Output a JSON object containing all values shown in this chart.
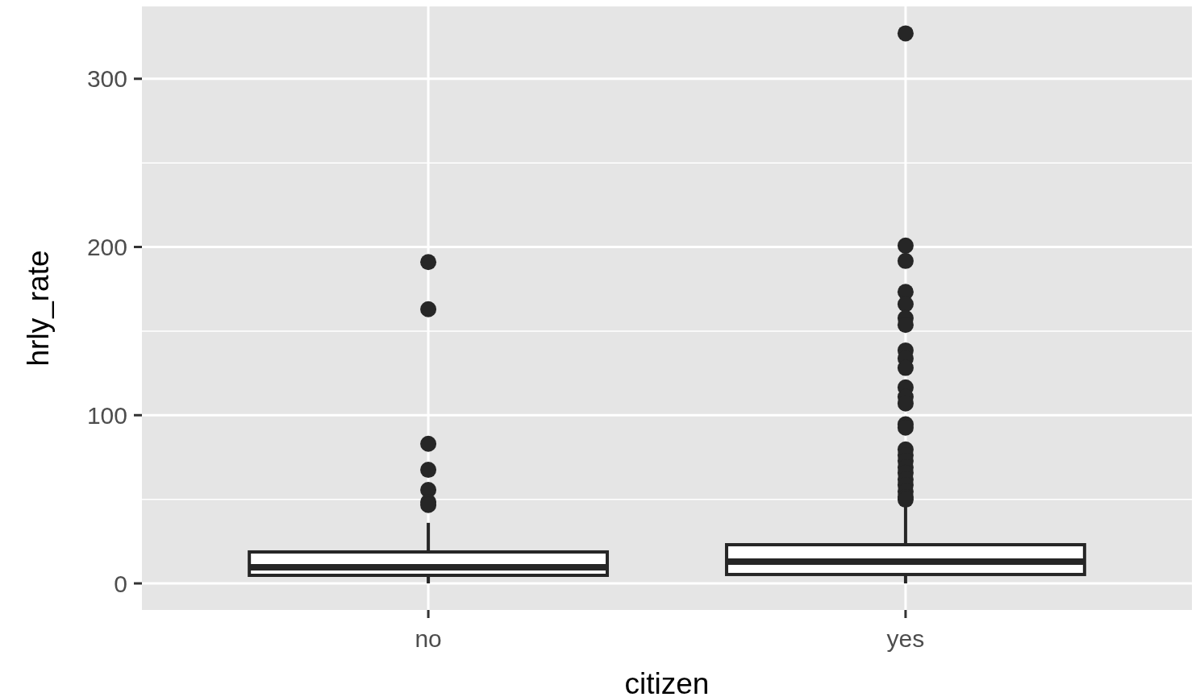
{
  "chart_data": {
    "type": "box",
    "xlabel": "citizen",
    "ylabel": "hrly_rate",
    "categories": [
      "no",
      "yes"
    ],
    "boxes": [
      {
        "low": 0,
        "q1": 4.8,
        "median": 9.6,
        "q3": 18.7,
        "high": 36,
        "outliers": [
          191,
          163,
          83,
          67.5,
          55.6,
          48.4,
          46.6
        ]
      },
      {
        "low": 0,
        "q1": 5.3,
        "median": 13,
        "q3": 23,
        "high": 46,
        "outliers": [
          327,
          200.8,
          191.7,
          173.3,
          166,
          157.7,
          153.7,
          138.5,
          133.7,
          128.1,
          116.5,
          110.9,
          107,
          94.6,
          92.6,
          79.6,
          76.2,
          72.8,
          69,
          65.7,
          61.8,
          58.5,
          54.6,
          51.3,
          49.8
        ]
      }
    ],
    "color": "#262626",
    "ylim": [
      -15.8,
      343
    ],
    "yticks": [
      0,
      100,
      200,
      300
    ],
    "grid": true
  }
}
